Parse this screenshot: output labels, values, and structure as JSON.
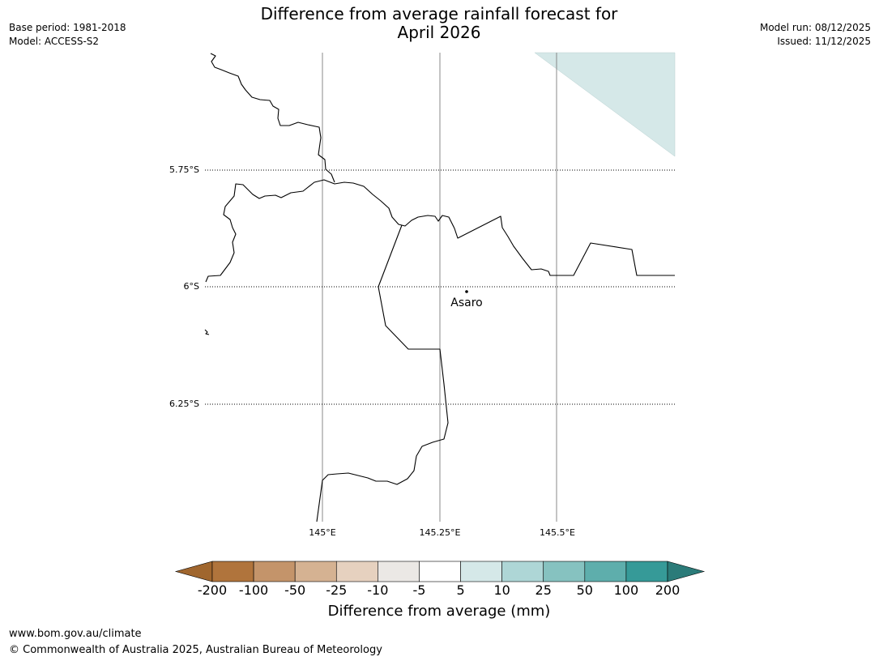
{
  "header": {
    "title_line1": "Difference from average rainfall forecast for",
    "title_line2": "April 2026",
    "base_period": "Base period: 1981-2018",
    "model": "Model: ACCESS-S2",
    "model_run": "Model run: 08/12/2025",
    "issued": "Issued: 11/12/2025"
  },
  "map": {
    "lat_labels": [
      "5.75°S",
      "6°S",
      "6.25°S"
    ],
    "lon_labels": [
      "145°E",
      "145.25°E",
      "145.5°E"
    ],
    "place": {
      "name": "Asaro"
    },
    "forecast_category": "5 to 10"
  },
  "colorbar": {
    "title": "Difference from average (mm)",
    "bounds": [
      "-200",
      "-100",
      "-50",
      "-25",
      "-10",
      "-5",
      "5",
      "10",
      "25",
      "50",
      "100",
      "200"
    ],
    "colors": [
      "#a0662e",
      "#b0743c",
      "#c4946a",
      "#d5b292",
      "#e6d1bf",
      "#ebe8e5",
      "#ffffff",
      "#d5e8e8",
      "#aed6d6",
      "#86c2c0",
      "#5eaeac",
      "#369a98",
      "#2b7b79"
    ]
  },
  "footer": {
    "url": "www.bom.gov.au/climate",
    "copyright": "© Commonwealth of Australia 2025, Australian Bureau of Meteorology"
  }
}
